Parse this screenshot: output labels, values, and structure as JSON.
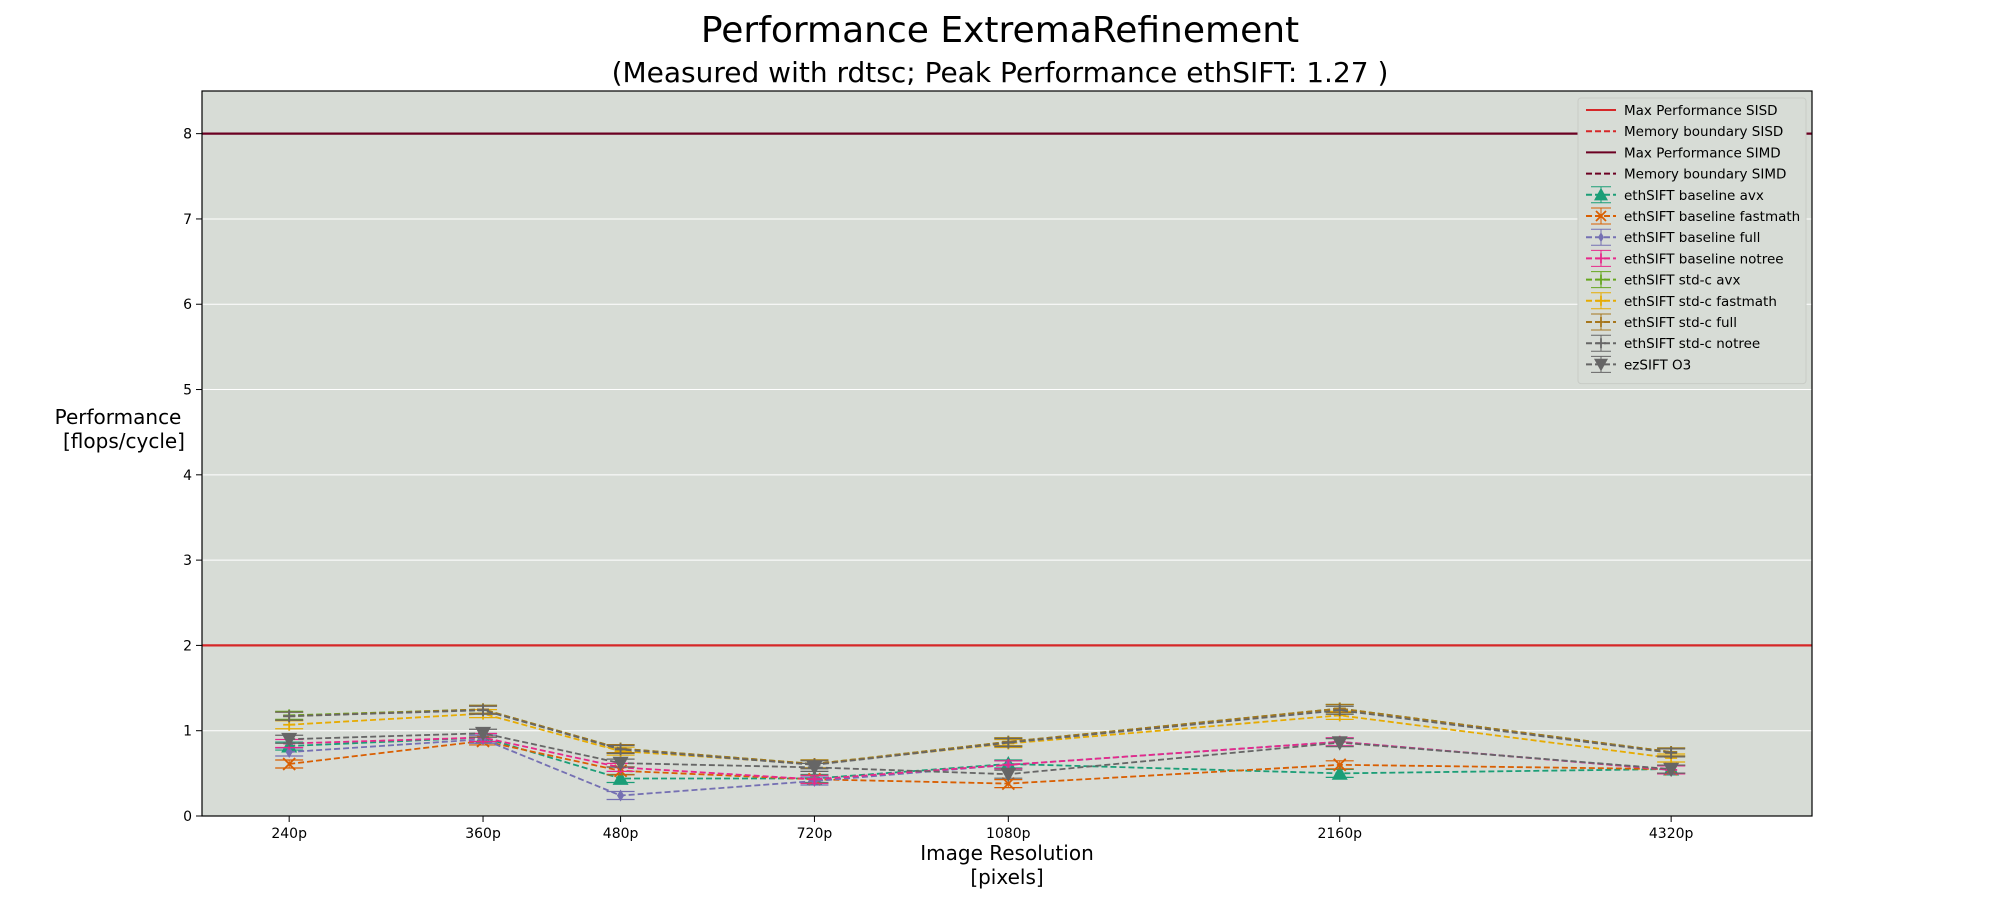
{
  "chart_data": {
    "type": "line",
    "title": "Performance ExtremaRefinement",
    "subtitle": "(Measured with rdtsc; Peak Performance ethSIFT: 1.27 )",
    "xlabel": [
      "Image Resolution",
      "[pixels]"
    ],
    "ylabel": [
      "Performance",
      "[flops/cycle]"
    ],
    "x": [
      240,
      360,
      480,
      720,
      1080,
      2160,
      4320
    ],
    "x_tick_labels": [
      "240p",
      "360p",
      "480p",
      "720p",
      "1080p",
      "2160p",
      "4320p"
    ],
    "x_scale": "log",
    "xlim": [
      200,
      5800
    ],
    "ylim": [
      0,
      8.5
    ],
    "y_ticks": [
      0,
      1,
      2,
      3,
      4,
      5,
      6,
      7,
      8
    ],
    "grid": "horizontal",
    "legend_position": "top-right",
    "background": "#d7dcd6",
    "reference_lines": [
      {
        "name": "Max Performance SISD",
        "value": 2,
        "style": "solid",
        "color": "#d62728"
      },
      {
        "name": "Memory boundary SISD",
        "value": null,
        "style": "dashed",
        "color": "#d62728"
      },
      {
        "name": "Max Performance SIMD",
        "value": 8,
        "style": "solid",
        "color": "#6b0022"
      },
      {
        "name": "Memory boundary SIMD",
        "value": null,
        "style": "dashed",
        "color": "#6b0022"
      }
    ],
    "series": [
      {
        "name": "ethSIFT baseline avx",
        "color": "#1b9e77",
        "marker": "triangle-up",
        "values": [
          0.82,
          0.92,
          0.44,
          0.44,
          0.61,
          0.5,
          0.55
        ]
      },
      {
        "name": "ethSIFT baseline fastmath",
        "color": "#d95f02",
        "marker": "x",
        "values": [
          0.61,
          0.88,
          0.53,
          0.43,
          0.38,
          0.6,
          0.55
        ]
      },
      {
        "name": "ethSIFT baseline full",
        "color": "#7570b3",
        "marker": "diamond",
        "values": [
          0.75,
          0.9,
          0.24,
          0.41,
          0.6,
          0.87,
          0.54
        ]
      },
      {
        "name": "ethSIFT baseline notree",
        "color": "#e7298a",
        "marker": "plus",
        "values": [
          0.85,
          0.92,
          0.57,
          0.43,
          0.6,
          0.87,
          0.54
        ]
      },
      {
        "name": "ethSIFT std-c avx",
        "color": "#66a61e",
        "marker": "plus",
        "values": [
          1.18,
          1.25,
          0.79,
          0.61,
          0.87,
          1.26,
          0.75
        ]
      },
      {
        "name": "ethSIFT std-c fastmath",
        "color": "#e6ab02",
        "marker": "plus",
        "values": [
          1.07,
          1.2,
          0.76,
          0.61,
          0.85,
          1.18,
          0.68
        ]
      },
      {
        "name": "ethSIFT std-c full",
        "color": "#a6761d",
        "marker": "plus",
        "values": [
          1.17,
          1.25,
          0.79,
          0.61,
          0.87,
          1.26,
          0.75
        ]
      },
      {
        "name": "ethSIFT std-c notree",
        "color": "#666666",
        "marker": "plus",
        "values": [
          1.17,
          1.24,
          0.78,
          0.6,
          0.86,
          1.24,
          0.74
        ]
      },
      {
        "name": "ezSIFT O3",
        "color": "#666666",
        "marker": "triangle-down",
        "values": [
          0.9,
          0.97,
          0.62,
          0.57,
          0.49,
          0.86,
          0.55
        ]
      }
    ]
  }
}
